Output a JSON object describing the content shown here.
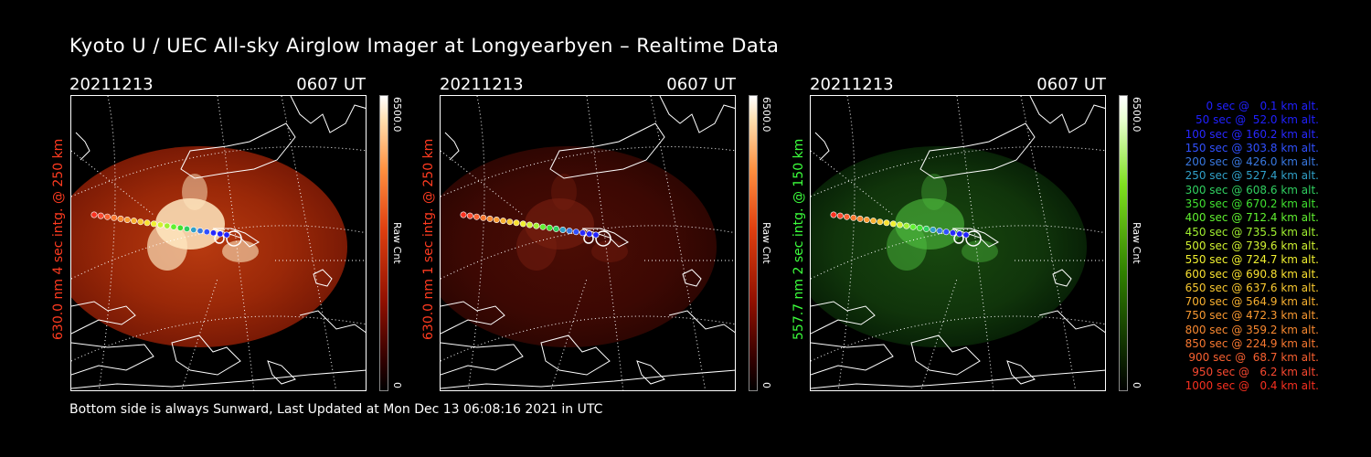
{
  "title": "Kyoto U / UEC All-sky Airglow Imager at Longyearbyen – Realtime Data",
  "footer": "Bottom side is always Sunward, Last Updated at Mon Dec 13 06:08:16 2021 in UTC",
  "panels": [
    {
      "date": "20211213",
      "time": "0607 UT",
      "ylabel": "630.0 nm 4 sec intg. @ 250 km",
      "color": "#ff3b20",
      "cbar_max": "6500.0",
      "cbar_min": "0",
      "cbar_label": "Raw Cnt",
      "theme": "red",
      "intensity": "bright"
    },
    {
      "date": "20211213",
      "time": "0607 UT",
      "ylabel": "630.0 nm 1 sec intg. @ 250 km",
      "color": "#ff3b20",
      "cbar_max": "6500.0",
      "cbar_min": "0",
      "cbar_label": "Raw Cnt",
      "theme": "red",
      "intensity": "dim"
    },
    {
      "date": "20211213",
      "time": "0607 UT",
      "ylabel": "557.7 nm 2 sec intg. @ 150 km",
      "color": "#3cff3c",
      "cbar_max": "6500.0",
      "cbar_min": "0",
      "cbar_label": "Raw Cnt",
      "theme": "green",
      "intensity": "dim"
    }
  ],
  "legend": [
    {
      "text": "0 sec @   0.1 km alt.",
      "color": "#2020ff"
    },
    {
      "text": "50 sec @  52.0 km alt.",
      "color": "#2020ff"
    },
    {
      "text": "100 sec @ 160.2 km alt.",
      "color": "#2828ff"
    },
    {
      "text": "150 sec @ 303.8 km alt.",
      "color": "#3050ff"
    },
    {
      "text": "200 sec @ 426.0 km alt.",
      "color": "#3878e0"
    },
    {
      "text": "250 sec @ 527.4 km alt.",
      "color": "#30a0c8"
    },
    {
      "text": "300 sec @ 608.6 km alt.",
      "color": "#30d060"
    },
    {
      "text": "350 sec @ 670.2 km alt.",
      "color": "#40e030"
    },
    {
      "text": "400 sec @ 712.4 km alt.",
      "color": "#60f030"
    },
    {
      "text": "450 sec @ 735.5 km alt.",
      "color": "#a0f030"
    },
    {
      "text": "500 sec @ 739.6 km alt.",
      "color": "#d0f030"
    },
    {
      "text": "550 sec @ 724.7 km alt.",
      "color": "#f0f030"
    },
    {
      "text": "600 sec @ 690.8 km alt.",
      "color": "#f8e030"
    },
    {
      "text": "650 sec @ 637.6 km alt.",
      "color": "#f8c830"
    },
    {
      "text": "700 sec @ 564.9 km alt.",
      "color": "#f8b030"
    },
    {
      "text": "750 sec @ 472.3 km alt.",
      "color": "#f89830"
    },
    {
      "text": "800 sec @ 359.2 km alt.",
      "color": "#f88830"
    },
    {
      "text": "850 sec @ 224.9 km alt.",
      "color": "#f87830"
    },
    {
      "text": "900 sec @  68.7 km alt.",
      "color": "#f86030"
    },
    {
      "text": "950 sec @   6.2 km alt.",
      "color": "#f84830"
    },
    {
      "text": "1000 sec @   0.4 km alt.",
      "color": "#f83020"
    }
  ]
}
